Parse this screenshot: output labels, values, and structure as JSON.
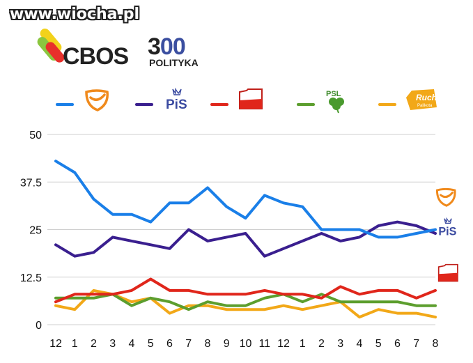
{
  "header": {
    "watermark": "www.wiocha.pl",
    "cbos_label": "CBOS",
    "brand_300_left": "3",
    "brand_300_mid": "0",
    "brand_300_right": "0",
    "polityka_label": "POLITYKA"
  },
  "legend": [
    {
      "party": "PO",
      "color": "#1a7fe8",
      "logo": "po-logo-icon"
    },
    {
      "party": "PiS",
      "color": "#3a1f8f",
      "logo": "pis-logo-icon",
      "logo_text": "PiS"
    },
    {
      "party": "SLD",
      "color": "#e0261b",
      "logo": "sld-logo-icon"
    },
    {
      "party": "PSL",
      "color": "#5c9e2e",
      "logo": "psl-logo-icon",
      "logo_text": "PSL"
    },
    {
      "party": "Ruch Palikota",
      "color": "#f2a818",
      "logo": "ruch-logo-icon",
      "logo_text": "Ruch",
      "logo_subtext": "Palikota"
    }
  ],
  "chart_data": {
    "type": "line",
    "categories": [
      "12",
      "1",
      "2",
      "3",
      "4",
      "5",
      "6",
      "7",
      "8",
      "9",
      "10",
      "11",
      "12",
      "1",
      "2",
      "3",
      "4",
      "5",
      "6",
      "7",
      "8"
    ],
    "ylim": [
      0,
      50
    ],
    "yticks": [
      "50",
      "37.5",
      "25",
      "12.5",
      "0"
    ],
    "grid": true,
    "series": [
      {
        "key": "po",
        "color": "#1a7fe8",
        "values": [
          43,
          40,
          33,
          29,
          29,
          27,
          32,
          32,
          36,
          31,
          28,
          34,
          32,
          31,
          25,
          25,
          25,
          23,
          23,
          24,
          25
        ]
      },
      {
        "key": "pis",
        "color": "#3a1f8f",
        "values": [
          21,
          18,
          19,
          23,
          22,
          21,
          20,
          25,
          22,
          23,
          24,
          18,
          20,
          22,
          24,
          22,
          23,
          26,
          27,
          26,
          24
        ]
      },
      {
        "key": "sld",
        "color": "#e0261b",
        "values": [
          6,
          8,
          8,
          8,
          9,
          12,
          9,
          9,
          8,
          8,
          8,
          9,
          8,
          8,
          7,
          10,
          8,
          9,
          9,
          7,
          9
        ]
      },
      {
        "key": "psl",
        "color": "#5c9e2e",
        "values": [
          7,
          7,
          7,
          8,
          5,
          7,
          6,
          4,
          6,
          5,
          5,
          7,
          8,
          6,
          8,
          6,
          6,
          6,
          6,
          5,
          5
        ]
      },
      {
        "key": "ruch",
        "color": "#f2a818",
        "values": [
          5,
          4,
          9,
          8,
          6,
          7,
          3,
          5,
          5,
          4,
          4,
          4,
          5,
          4,
          5,
          6,
          2,
          4,
          3,
          3,
          2
        ]
      }
    ]
  }
}
